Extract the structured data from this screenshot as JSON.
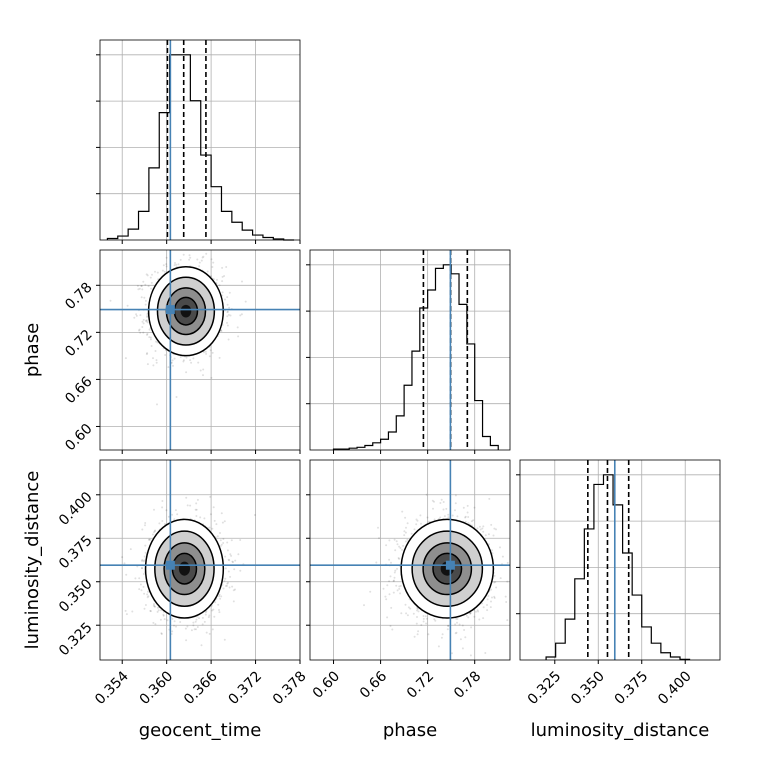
{
  "chart_data": {
    "type": "corner",
    "parameters": [
      "geocent_time",
      "phase",
      "luminosity_distance"
    ],
    "truths": [
      0.3605,
      0.749,
      0.3595
    ],
    "colors": {
      "truth": "#4682b4",
      "hist": "#000000",
      "grid": "#b0b0b0"
    },
    "axes": [
      {
        "name": "geocent_time",
        "xlim": [
          0.351,
          0.378
        ],
        "ticks": [
          0.354,
          0.36,
          0.366,
          0.372,
          0.378
        ],
        "tick_labels": [
          "0.354",
          "0.360",
          "0.366",
          "0.372",
          "0.378"
        ]
      },
      {
        "name": "phase",
        "xlim": [
          0.57,
          0.825
        ],
        "ticks": [
          0.6,
          0.66,
          0.72,
          0.78
        ],
        "tick_labels": [
          "0.60",
          "0.66",
          "0.72",
          "0.78"
        ]
      },
      {
        "name": "luminosity_distance",
        "xlim": [
          0.305,
          0.42
        ],
        "ticks": [
          0.325,
          0.35,
          0.375,
          0.4
        ],
        "tick_labels": [
          "0.325",
          "0.350",
          "0.375",
          "0.400"
        ]
      }
    ],
    "x_labels": [
      "geocent_time",
      "phase",
      "luminosity_distance"
    ],
    "y_labels": [
      "phase",
      "luminosity_distance"
    ],
    "histograms": [
      {
        "name": "geocent_time",
        "quantiles": [
          0.3601,
          0.3623,
          0.3653
        ],
        "edges": [
          0.352,
          0.3534,
          0.3548,
          0.3562,
          0.3576,
          0.359,
          0.3604,
          0.3618,
          0.3632,
          0.3646,
          0.366,
          0.3674,
          0.3688,
          0.3702,
          0.3716,
          0.373,
          0.3744,
          0.3758,
          0.3772
        ],
        "counts": [
          3,
          8,
          22,
          58,
          146,
          258,
          375,
          375,
          282,
          172,
          108,
          58,
          36,
          20,
          10,
          5,
          2,
          0
        ]
      },
      {
        "name": "phase",
        "quantiles": [
          0.7146,
          0.7493,
          0.7706
        ],
        "edges": [
          0.6,
          0.61,
          0.62,
          0.63,
          0.64,
          0.65,
          0.66,
          0.67,
          0.68,
          0.69,
          0.7,
          0.71,
          0.72,
          0.73,
          0.74,
          0.75,
          0.76,
          0.77,
          0.78,
          0.79,
          0.8,
          0.81
        ],
        "counts": [
          1,
          1,
          2,
          3,
          5,
          8,
          12,
          20,
          38,
          72,
          110,
          158,
          178,
          202,
          206,
          196,
          162,
          118,
          55,
          15,
          5
        ]
      },
      {
        "name": "luminosity_distance",
        "quantiles": [
          0.344,
          0.3553,
          0.3675
        ],
        "edges": [
          0.32,
          0.3255,
          0.331,
          0.3365,
          0.342,
          0.3475,
          0.353,
          0.3585,
          0.364,
          0.3695,
          0.375,
          0.3805,
          0.386,
          0.3915,
          0.397,
          0.4025
        ],
        "counts": [
          5,
          28,
          68,
          135,
          218,
          292,
          308,
          258,
          178,
          108,
          55,
          28,
          12,
          5,
          1
        ]
      }
    ],
    "posteriors_2d": [
      {
        "x": "geocent_time",
        "y": "phase",
        "center": [
          0.3626,
          0.747
        ],
        "spread": [
          0.0024,
          0.027
        ],
        "points": 1400
      },
      {
        "x": "geocent_time",
        "y": "luminosity_distance",
        "center": [
          0.3624,
          0.3575
        ],
        "spread": [
          0.0025,
          0.0135
        ],
        "points": 1400
      },
      {
        "x": "phase",
        "y": "luminosity_distance",
        "center": [
          0.745,
          0.3575
        ],
        "spread": [
          0.028,
          0.0135
        ],
        "points": 1400
      }
    ],
    "ylims": {
      "phase": [
        0.57,
        0.825
      ],
      "luminosity_distance": [
        0.305,
        0.42
      ]
    }
  }
}
